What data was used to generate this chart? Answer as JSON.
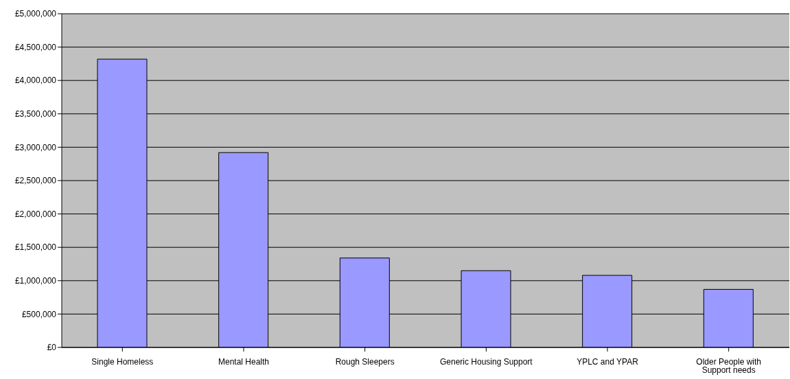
{
  "chart_data": {
    "type": "bar",
    "categories": [
      "Single Homeless",
      "Mental Health",
      "Rough Sleepers",
      "Generic Housing Support",
      "YPLC and YPAR",
      "Older People with Support needs"
    ],
    "values": [
      4320000,
      2920000,
      1340000,
      1150000,
      1080000,
      870000
    ],
    "color": "#9999ff",
    "ylim": [
      0,
      5000000
    ],
    "yticks": [
      {
        "value": 0,
        "label": "£0"
      },
      {
        "value": 500000,
        "label": "£500,000"
      },
      {
        "value": 1000000,
        "label": "£1,000,000"
      },
      {
        "value": 1500000,
        "label": "£1,500,000"
      },
      {
        "value": 2000000,
        "label": "£2,000,000"
      },
      {
        "value": 2500000,
        "label": "£2,500,000"
      },
      {
        "value": 3000000,
        "label": "£3,000,000"
      },
      {
        "value": 3500000,
        "label": "£3,500,000"
      },
      {
        "value": 4000000,
        "label": "£4,000,000"
      },
      {
        "value": 4500000,
        "label": "£4,500,000"
      },
      {
        "value": 5000000,
        "label": "£5,000,000"
      }
    ],
    "grid": "y"
  }
}
